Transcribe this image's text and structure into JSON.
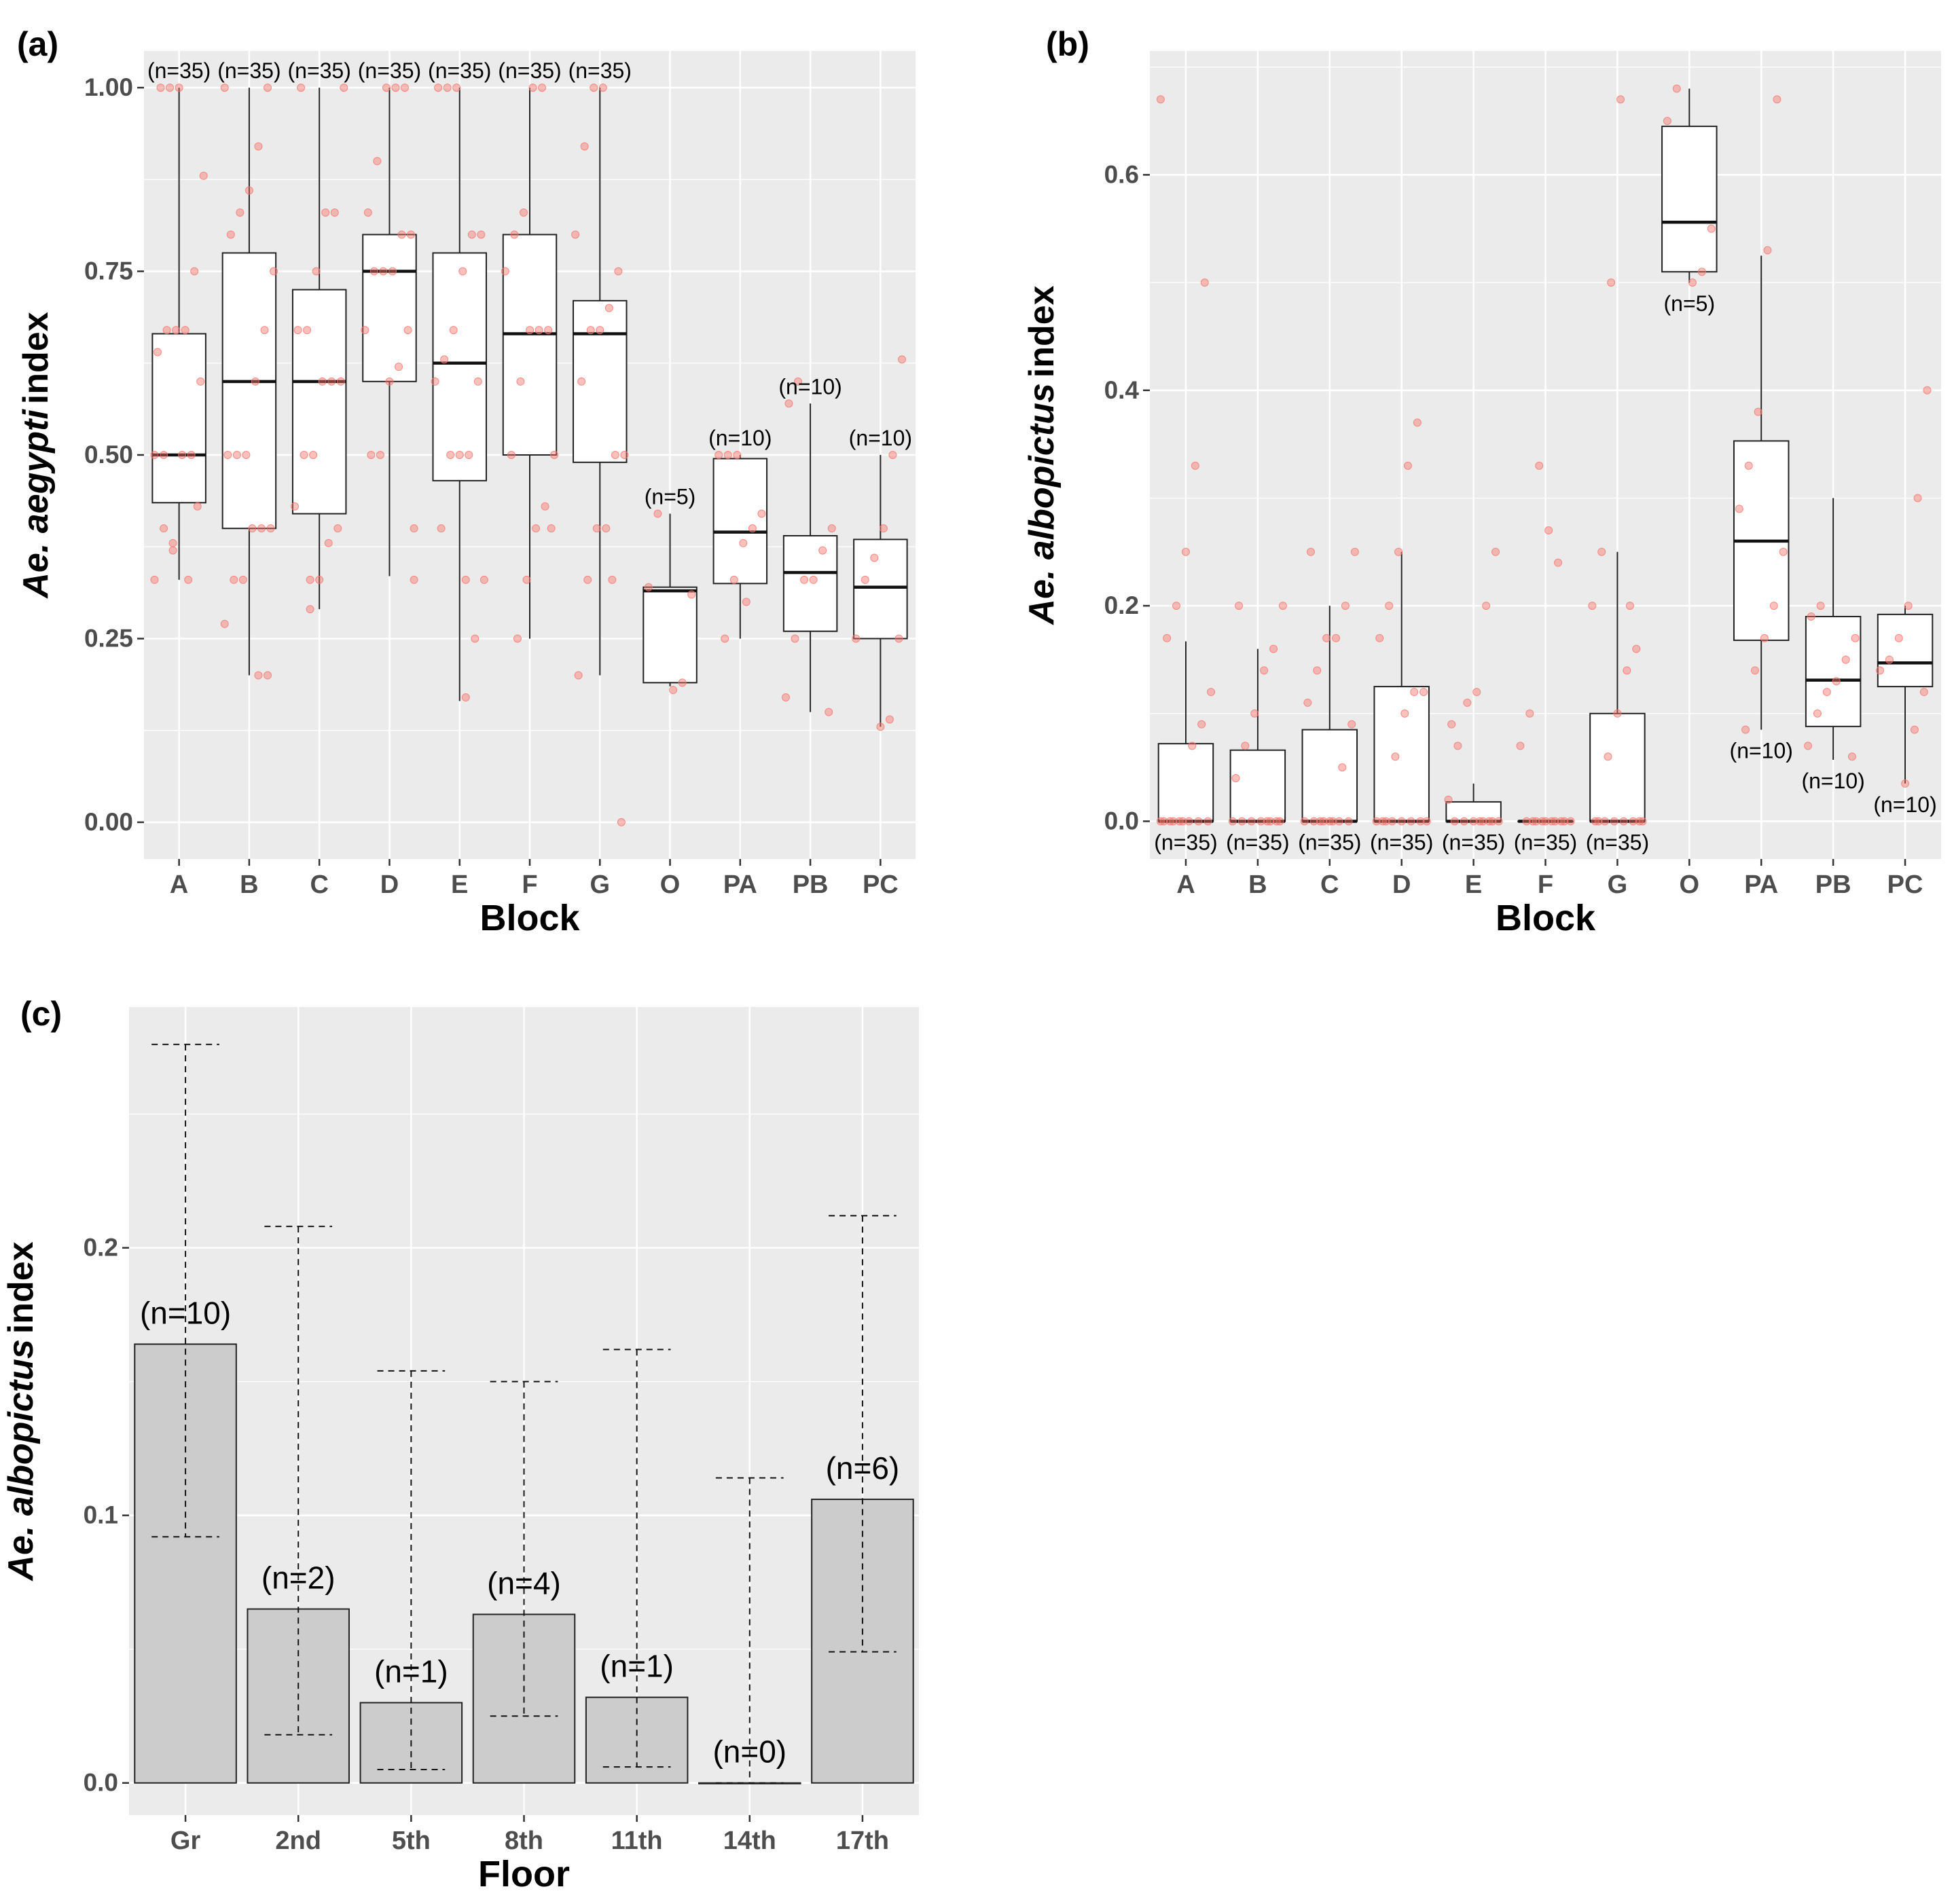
{
  "chart_data": [
    {
      "panel": "(a)",
      "type": "box",
      "xlabel": "Block",
      "ylabel_italic": "Ae. aegypti",
      "ylabel_plain": "index",
      "categories": [
        "A",
        "B",
        "C",
        "D",
        "E",
        "F",
        "G",
        "O",
        "PA",
        "PB",
        "PC"
      ],
      "ylim": [
        -0.05,
        1.05
      ],
      "yticks": [
        0.0,
        0.25,
        0.5,
        0.75,
        1.0
      ],
      "ytick_labels": [
        "0.00",
        "0.25",
        "0.50",
        "0.75",
        "1.00"
      ],
      "boxes": [
        {
          "cat": "A",
          "whisker_low": 0.33,
          "q1": 0.435,
          "median": 0.5,
          "q3": 0.665,
          "whisker_high": 1.0,
          "n_label": "(n=35)",
          "label_pos": "top"
        },
        {
          "cat": "B",
          "whisker_low": 0.2,
          "q1": 0.4,
          "median": 0.6,
          "q3": 0.775,
          "whisker_high": 1.0,
          "n_label": "(n=35)",
          "label_pos": "top"
        },
        {
          "cat": "C",
          "whisker_low": 0.29,
          "q1": 0.42,
          "median": 0.6,
          "q3": 0.725,
          "whisker_high": 1.0,
          "n_label": "(n=35)",
          "label_pos": "top"
        },
        {
          "cat": "D",
          "whisker_low": 0.335,
          "q1": 0.6,
          "median": 0.75,
          "q3": 0.8,
          "whisker_high": 1.0,
          "n_label": "(n=35)",
          "label_pos": "top"
        },
        {
          "cat": "E",
          "whisker_low": 0.165,
          "q1": 0.465,
          "median": 0.625,
          "q3": 0.775,
          "whisker_high": 1.0,
          "n_label": "(n=35)",
          "label_pos": "top"
        },
        {
          "cat": "F",
          "whisker_low": 0.25,
          "q1": 0.5,
          "median": 0.665,
          "q3": 0.8,
          "whisker_high": 1.0,
          "n_label": "(n=35)",
          "label_pos": "top"
        },
        {
          "cat": "G",
          "whisker_low": 0.2,
          "q1": 0.49,
          "median": 0.665,
          "q3": 0.71,
          "whisker_high": 1.0,
          "n_label": "(n=35)",
          "label_pos": "top"
        },
        {
          "cat": "O",
          "whisker_low": 0.185,
          "q1": 0.19,
          "median": 0.315,
          "q3": 0.32,
          "whisker_high": 0.42,
          "n_label": "(n=5)",
          "label_pos": "top"
        },
        {
          "cat": "PA",
          "whisker_low": 0.25,
          "q1": 0.325,
          "median": 0.395,
          "q3": 0.495,
          "whisker_high": 0.5,
          "n_label": "(n=10)",
          "label_pos": "top"
        },
        {
          "cat": "PB",
          "whisker_low": 0.15,
          "q1": 0.26,
          "median": 0.34,
          "q3": 0.39,
          "whisker_high": 0.57,
          "n_label": "(n=10)",
          "label_pos": "top"
        },
        {
          "cat": "PC",
          "whisker_low": 0.13,
          "q1": 0.25,
          "median": 0.32,
          "q3": 0.385,
          "whisker_high": 0.5,
          "n_label": "(n=10)",
          "label_pos": "top"
        }
      ],
      "points": [
        [
          0.33,
          0.4,
          0.38,
          0.5,
          0.5,
          0.6,
          0.64,
          0.67,
          0.67,
          0.67,
          0.75,
          0.88,
          1.0,
          1.0,
          1.0,
          0.33,
          0.43,
          0.5,
          0.5,
          0.37
        ],
        [
          0.2,
          0.2,
          0.27,
          0.33,
          0.33,
          0.4,
          0.4,
          0.4,
          0.5,
          0.5,
          0.5,
          0.6,
          0.67,
          0.75,
          0.8,
          0.83,
          0.86,
          0.92,
          1.0,
          1.0
        ],
        [
          0.29,
          0.33,
          0.38,
          0.4,
          0.43,
          0.5,
          0.5,
          0.6,
          0.6,
          0.6,
          0.67,
          0.67,
          0.75,
          0.83,
          0.83,
          1.0,
          1.0,
          0.33
        ],
        [
          0.33,
          0.5,
          0.5,
          0.6,
          0.62,
          0.67,
          0.67,
          0.75,
          0.75,
          0.75,
          0.8,
          0.8,
          0.83,
          0.9,
          1.0,
          1.0,
          1.0,
          0.4
        ],
        [
          0.17,
          0.25,
          0.33,
          0.4,
          0.5,
          0.5,
          0.5,
          0.6,
          0.6,
          0.63,
          0.67,
          0.75,
          0.8,
          0.8,
          1.0,
          1.0,
          1.0,
          0.33
        ],
        [
          0.25,
          0.33,
          0.4,
          0.43,
          0.5,
          0.5,
          0.6,
          0.67,
          0.67,
          0.67,
          0.75,
          0.8,
          0.83,
          1.0,
          1.0,
          0.4
        ],
        [
          0.0,
          0.2,
          0.33,
          0.4,
          0.4,
          0.5,
          0.5,
          0.6,
          0.67,
          0.67,
          0.7,
          0.75,
          0.8,
          0.92,
          1.0,
          1.0,
          0.33
        ],
        [
          0.18,
          0.19,
          0.31,
          0.32,
          0.42
        ],
        [
          0.25,
          0.33,
          0.38,
          0.4,
          0.42,
          0.5,
          0.5,
          0.5,
          0.3
        ],
        [
          0.15,
          0.17,
          0.25,
          0.33,
          0.33,
          0.37,
          0.4,
          0.57,
          0.6
        ],
        [
          0.13,
          0.14,
          0.25,
          0.25,
          0.33,
          0.36,
          0.4,
          0.5,
          0.63
        ]
      ]
    },
    {
      "panel": "(b)",
      "type": "box",
      "xlabel": "Block",
      "ylabel_italic": "Ae. albopictus",
      "ylabel_plain": "index",
      "categories": [
        "A",
        "B",
        "C",
        "D",
        "E",
        "F",
        "G",
        "O",
        "PA",
        "PB",
        "PC"
      ],
      "ylim": [
        -0.035,
        0.715
      ],
      "yticks": [
        0.0,
        0.2,
        0.4,
        0.6
      ],
      "ytick_labels": [
        "0.0",
        "0.2",
        "0.4",
        "0.6"
      ],
      "boxes": [
        {
          "cat": "A",
          "whisker_low": 0.0,
          "q1": 0.0,
          "median": 0.0,
          "q3": 0.072,
          "whisker_high": 0.167,
          "n_label": "(n=35)",
          "label_pos": "bottom"
        },
        {
          "cat": "B",
          "whisker_low": 0.0,
          "q1": 0.0,
          "median": 0.0,
          "q3": 0.066,
          "whisker_high": 0.16,
          "n_label": "(n=35)",
          "label_pos": "bottom"
        },
        {
          "cat": "C",
          "whisker_low": 0.0,
          "q1": 0.0,
          "median": 0.0,
          "q3": 0.085,
          "whisker_high": 0.2,
          "n_label": "(n=35)",
          "label_pos": "bottom"
        },
        {
          "cat": "D",
          "whisker_low": 0.0,
          "q1": 0.0,
          "median": 0.0,
          "q3": 0.125,
          "whisker_high": 0.25,
          "n_label": "(n=35)",
          "label_pos": "bottom"
        },
        {
          "cat": "E",
          "whisker_low": 0.0,
          "q1": 0.0,
          "median": 0.0,
          "q3": 0.018,
          "whisker_high": 0.035,
          "n_label": "(n=35)",
          "label_pos": "bottom"
        },
        {
          "cat": "F",
          "whisker_low": 0.0,
          "q1": 0.0,
          "median": 0.0,
          "q3": 0.0,
          "whisker_high": 0.0,
          "n_label": "(n=35)",
          "label_pos": "bottom"
        },
        {
          "cat": "G",
          "whisker_low": 0.0,
          "q1": 0.0,
          "median": 0.0,
          "q3": 0.1,
          "whisker_high": 0.25,
          "n_label": "(n=35)",
          "label_pos": "bottom"
        },
        {
          "cat": "O",
          "whisker_low": 0.5,
          "q1": 0.51,
          "median": 0.556,
          "q3": 0.645,
          "whisker_high": 0.68,
          "n_label": "(n=5)",
          "label_pos": "bottom"
        },
        {
          "cat": "PA",
          "whisker_low": 0.085,
          "q1": 0.168,
          "median": 0.26,
          "q3": 0.353,
          "whisker_high": 0.525,
          "n_label": "(n=10)",
          "label_pos": "bottom"
        },
        {
          "cat": "PB",
          "whisker_low": 0.057,
          "q1": 0.088,
          "median": 0.131,
          "q3": 0.19,
          "whisker_high": 0.3,
          "n_label": "(n=10)",
          "label_pos": "bottom"
        },
        {
          "cat": "PC",
          "whisker_low": 0.035,
          "q1": 0.125,
          "median": 0.147,
          "q3": 0.192,
          "whisker_high": 0.2,
          "n_label": "(n=10)",
          "label_pos": "bottom"
        }
      ],
      "points": [
        [
          0,
          0,
          0,
          0,
          0,
          0,
          0,
          0,
          0,
          0.07,
          0.09,
          0.12,
          0.17,
          0.2,
          0.25,
          0.33,
          0.5,
          0.67
        ],
        [
          0,
          0,
          0,
          0,
          0,
          0,
          0,
          0,
          0.04,
          0.07,
          0.1,
          0.14,
          0.16,
          0.2,
          0.2
        ],
        [
          0,
          0,
          0,
          0,
          0,
          0,
          0,
          0,
          0.05,
          0.09,
          0.11,
          0.14,
          0.17,
          0.17,
          0.2,
          0.25,
          0.25
        ],
        [
          0,
          0,
          0,
          0,
          0,
          0,
          0,
          0,
          0.06,
          0.1,
          0.12,
          0.12,
          0.17,
          0.2,
          0.25,
          0.33,
          0.37
        ],
        [
          0,
          0,
          0,
          0,
          0,
          0,
          0,
          0,
          0.02,
          0.07,
          0.11,
          0.12,
          0.2,
          0.25,
          0.09
        ],
        [
          0,
          0,
          0,
          0,
          0,
          0,
          0,
          0,
          0,
          0,
          0.07,
          0.1,
          0.33,
          0.27,
          0.24
        ],
        [
          0,
          0,
          0,
          0,
          0,
          0,
          0,
          0,
          0.06,
          0.1,
          0.14,
          0.16,
          0.2,
          0.25,
          0.5,
          0.67,
          0.2
        ],
        [
          0.5,
          0.51,
          0.55,
          0.65,
          0.68
        ],
        [
          0.085,
          0.14,
          0.17,
          0.2,
          0.25,
          0.29,
          0.33,
          0.38,
          0.53,
          0.67
        ],
        [
          0.06,
          0.07,
          0.1,
          0.12,
          0.13,
          0.15,
          0.17,
          0.19,
          0.2
        ],
        [
          0.035,
          0.085,
          0.12,
          0.14,
          0.15,
          0.17,
          0.2,
          0.3,
          0.4
        ]
      ]
    },
    {
      "panel": "(c)",
      "type": "bar",
      "xlabel": "Floor",
      "ylabel_italic": "Ae. albopictus",
      "ylabel_plain": "index",
      "categories": [
        "Gr",
        "2nd",
        "5th",
        "8th",
        "11th",
        "14th",
        "17th"
      ],
      "ylim": [
        -0.012,
        0.29
      ],
      "yticks": [
        0.0,
        0.1,
        0.2
      ],
      "ytick_labels": [
        "0.0",
        "0.1",
        "0.2"
      ],
      "bars": [
        {
          "cat": "Gr",
          "value": 0.164,
          "err_low": 0.092,
          "err_high": 0.276,
          "n_label": "(n=10)"
        },
        {
          "cat": "2nd",
          "value": 0.065,
          "err_low": 0.018,
          "err_high": 0.208,
          "n_label": "(n=2)"
        },
        {
          "cat": "5th",
          "value": 0.03,
          "err_low": 0.005,
          "err_high": 0.154,
          "n_label": "(n=1)"
        },
        {
          "cat": "8th",
          "value": 0.063,
          "err_low": 0.025,
          "err_high": 0.15,
          "n_label": "(n=4)"
        },
        {
          "cat": "11th",
          "value": 0.032,
          "err_low": 0.006,
          "err_high": 0.162,
          "n_label": "(n=1)"
        },
        {
          "cat": "14th",
          "value": 0.0,
          "err_low": 0.0,
          "err_high": 0.114,
          "n_label": "(n=0)"
        },
        {
          "cat": "17th",
          "value": 0.106,
          "err_low": 0.049,
          "err_high": 0.212,
          "n_label": "(n=6)"
        }
      ]
    }
  ],
  "colors": {
    "panel_bg": "#ebebeb",
    "grid": "#ffffff",
    "point": "#f8766d",
    "bar_fill": "#cccccc",
    "ink": "#000000",
    "tick_text": "#4d4d4d"
  }
}
